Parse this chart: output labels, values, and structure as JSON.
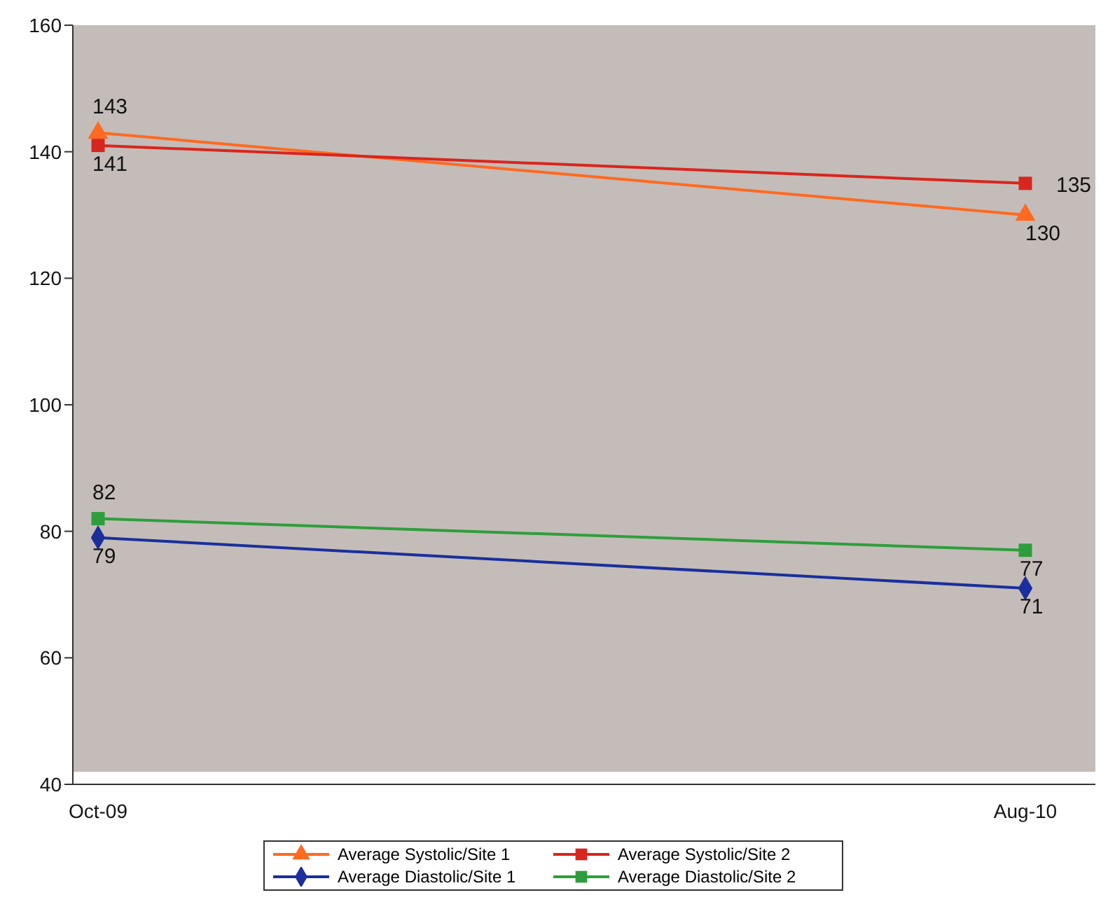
{
  "chart_data": {
    "type": "line",
    "categories": [
      "Oct-09",
      "Aug-10"
    ],
    "series": [
      {
        "name": "Average Systolic/Site 1",
        "color": "#ff6a21",
        "marker": "triangle",
        "values": [
          143,
          130
        ]
      },
      {
        "name": "Average Systolic/Site 2",
        "color": "#d7261e",
        "marker": "square",
        "values": [
          141,
          135
        ]
      },
      {
        "name": "Average Diastolic/Site 1",
        "color": "#1a2f9c",
        "marker": "diamond",
        "values": [
          79,
          71
        ]
      },
      {
        "name": "Average Diastolic/Site 2",
        "color": "#2e9e3c",
        "marker": "square",
        "values": [
          82,
          77
        ]
      }
    ],
    "ylim": [
      40,
      160
    ],
    "yticks": [
      40,
      60,
      80,
      100,
      120,
      140,
      160
    ],
    "data_labels": true,
    "legend": "bottom",
    "line_style": "solid"
  }
}
